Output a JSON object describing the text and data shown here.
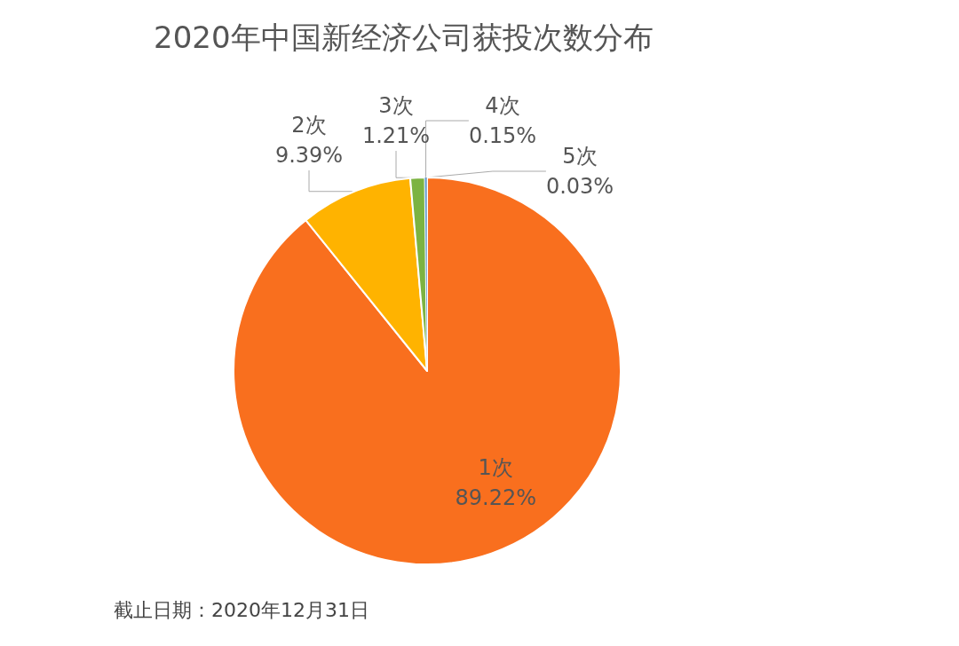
{
  "chart_data": {
    "type": "pie",
    "title": "2020年中国新经济公司获投次数分布",
    "categories": [
      "1次",
      "2次",
      "3次",
      "4次",
      "5次"
    ],
    "values": [
      89.22,
      9.39,
      1.21,
      0.15,
      0.03
    ],
    "colors": [
      "#f96f1e",
      "#ffb300",
      "#7cb342",
      "#5b9bd5",
      "#a5a5a5"
    ],
    "value_labels": [
      "89.22%",
      "9.39%",
      "1.21%",
      "0.15%",
      "0.03%"
    ],
    "annotations": [
      "截止日期：2020年12月31日"
    ]
  }
}
